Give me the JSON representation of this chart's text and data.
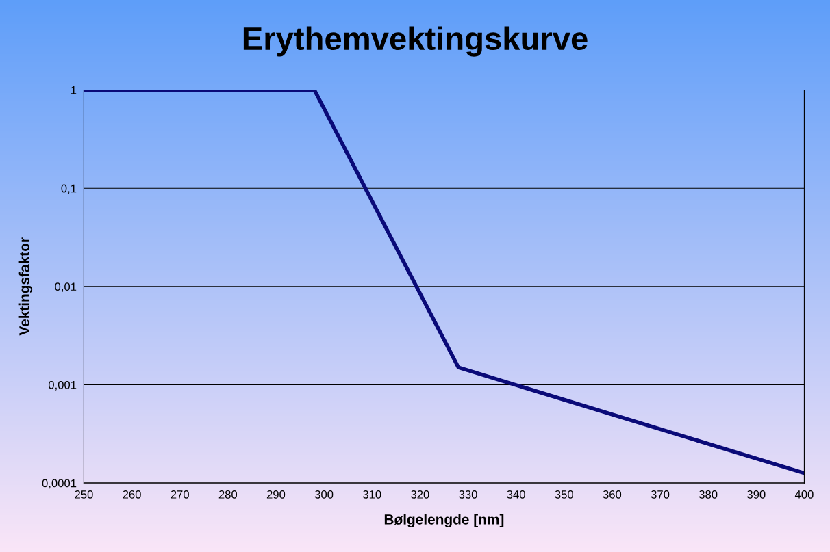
{
  "chart_data": {
    "type": "line",
    "title": "Erythemvektingskurve",
    "xlabel": "Bølgelengde [nm]",
    "ylabel": "Vektingsfaktor",
    "x": [
      250,
      298,
      328,
      400
    ],
    "series": [
      {
        "color": "#0a0a78",
        "values": [
          1,
          1,
          0.0015,
          0.000126
        ]
      }
    ],
    "log": "y",
    "grid": "y",
    "marker": "none",
    "line_style": "solid",
    "xlim": [
      250,
      400
    ],
    "xticks": [
      250,
      260,
      270,
      280,
      290,
      300,
      310,
      320,
      330,
      340,
      350,
      360,
      370,
      380,
      390,
      400
    ],
    "ylim": [
      0.0001,
      1
    ],
    "yticks": [
      {
        "value": 0.0001,
        "label": "0,0001"
      },
      {
        "value": 0.001,
        "label": "0,001"
      },
      {
        "value": 0.01,
        "label": "0,01"
      },
      {
        "value": 0.1,
        "label": "0,1"
      },
      1
    ]
  }
}
